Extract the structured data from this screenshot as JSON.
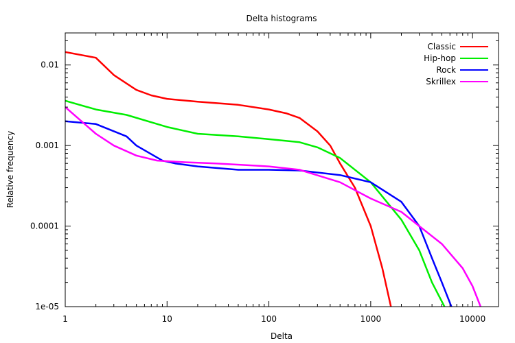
{
  "chart_data": {
    "type": "line",
    "title": "Delta histograms",
    "xlabel": "Delta",
    "ylabel": "Relative frequency",
    "xscale": "log",
    "yscale": "log",
    "xlim": [
      1,
      18000
    ],
    "ylim": [
      1e-05,
      0.025
    ],
    "x_ticks": [
      {
        "value": 1,
        "label": "1"
      },
      {
        "value": 10,
        "label": "10"
      },
      {
        "value": 100,
        "label": "100"
      },
      {
        "value": 1000,
        "label": "1000"
      },
      {
        "value": 10000,
        "label": "10000"
      }
    ],
    "y_ticks": [
      {
        "value": 1e-05,
        "label": "1e-05"
      },
      {
        "value": 0.0001,
        "label": "0.0001"
      },
      {
        "value": 0.001,
        "label": "0.001"
      },
      {
        "value": 0.01,
        "label": "0.01"
      }
    ],
    "grid": false,
    "legend_position": "top-right",
    "series": [
      {
        "name": "Classic",
        "color": "#ff0000",
        "points": [
          [
            1,
            0.0145
          ],
          [
            2,
            0.0123
          ],
          [
            3,
            0.0075
          ],
          [
            5,
            0.0049
          ],
          [
            7,
            0.0042
          ],
          [
            10,
            0.0038
          ],
          [
            20,
            0.0035
          ],
          [
            50,
            0.0032
          ],
          [
            100,
            0.0028
          ],
          [
            150,
            0.0025
          ],
          [
            200,
            0.0022
          ],
          [
            300,
            0.0015
          ],
          [
            400,
            0.001
          ],
          [
            500,
            0.0006
          ],
          [
            700,
            0.0003
          ],
          [
            1000,
            0.0001
          ],
          [
            1300,
            3e-05
          ],
          [
            1580,
            1e-05
          ]
        ]
      },
      {
        "name": "Hip-hop",
        "color": "#00ee00",
        "points": [
          [
            1,
            0.0036
          ],
          [
            2,
            0.0028
          ],
          [
            4,
            0.0024
          ],
          [
            10,
            0.0017
          ],
          [
            20,
            0.0014
          ],
          [
            50,
            0.0013
          ],
          [
            100,
            0.0012
          ],
          [
            200,
            0.0011
          ],
          [
            300,
            0.00095
          ],
          [
            500,
            0.0007
          ],
          [
            1000,
            0.00035
          ],
          [
            2000,
            0.00012
          ],
          [
            3000,
            5e-05
          ],
          [
            4000,
            2e-05
          ],
          [
            5300,
            1e-05
          ]
        ]
      },
      {
        "name": "Rock",
        "color": "#0000ff",
        "points": [
          [
            1,
            0.002
          ],
          [
            2,
            0.00185
          ],
          [
            4,
            0.0013
          ],
          [
            5,
            0.001
          ],
          [
            9,
            0.00065
          ],
          [
            12,
            0.0006
          ],
          [
            20,
            0.00055
          ],
          [
            50,
            0.0005
          ],
          [
            100,
            0.0005
          ],
          [
            200,
            0.00049
          ],
          [
            500,
            0.00043
          ],
          [
            1000,
            0.00035
          ],
          [
            2000,
            0.0002
          ],
          [
            3000,
            0.0001
          ],
          [
            4000,
            4e-05
          ],
          [
            5000,
            2e-05
          ],
          [
            6200,
            1e-05
          ]
        ]
      },
      {
        "name": "Skrillex",
        "color": "#ff00ff",
        "points": [
          [
            1,
            0.003
          ],
          [
            2,
            0.0014
          ],
          [
            3,
            0.001
          ],
          [
            5,
            0.00075
          ],
          [
            8,
            0.00065
          ],
          [
            15,
            0.00062
          ],
          [
            30,
            0.0006
          ],
          [
            100,
            0.00055
          ],
          [
            200,
            0.0005
          ],
          [
            500,
            0.00035
          ],
          [
            1000,
            0.00022
          ],
          [
            2000,
            0.00015
          ],
          [
            3000,
            0.0001
          ],
          [
            5000,
            6e-05
          ],
          [
            8000,
            3e-05
          ],
          [
            10000,
            1.8e-05
          ],
          [
            12000,
            1e-05
          ]
        ]
      }
    ]
  }
}
